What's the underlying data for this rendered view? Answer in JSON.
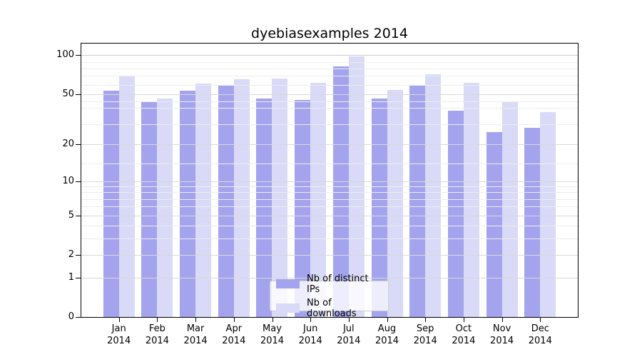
{
  "title": "dyebiasexamples 2014",
  "colors": {
    "ips_bar": "#a3a3ee",
    "downloads_bar": "#d9d9f8",
    "grid_major": "#d9d9d9",
    "grid_minor": "#ededed",
    "grid_top": "#c9c9c9",
    "axis": "#000000",
    "legend_border": "#cccccc"
  },
  "legend": {
    "items": [
      {
        "label": "Nb of distinct IPs",
        "color": "#a3a3ee"
      },
      {
        "label": "Nb of downloads",
        "color": "#d9d9f8"
      }
    ]
  },
  "chart_data": {
    "type": "bar",
    "title": "dyebiasexamples 2014",
    "categories": [
      "Jan 2014",
      "Feb 2014",
      "Mar 2014",
      "Apr 2014",
      "May 2014",
      "Jun 2014",
      "Jul 2014",
      "Aug 2014",
      "Sep 2014",
      "Oct 2014",
      "Nov 2014",
      "Dec 2014"
    ],
    "series": [
      {
        "name": "Nb of distinct IPs",
        "color": "#a3a3ee",
        "values": [
          53,
          43,
          53,
          58,
          46,
          45,
          82,
          46,
          58,
          37,
          25,
          27
        ]
      },
      {
        "name": "Nb of downloads",
        "color": "#d9d9f8",
        "values": [
          69,
          46,
          60,
          65,
          66,
          61,
          98,
          54,
          71,
          61,
          44,
          36
        ]
      }
    ],
    "xlabel": "",
    "ylabel": "",
    "yscale": "log10(value+1)",
    "ylim": [
      0,
      123
    ],
    "yticks": [
      0,
      1,
      2,
      5,
      10,
      20,
      50,
      100
    ],
    "yticks_minor": [
      3,
      4,
      6,
      7,
      8,
      9,
      14,
      29,
      39,
      44,
      59,
      69,
      79,
      89
    ],
    "grid": true,
    "legend_position": "lower center"
  }
}
